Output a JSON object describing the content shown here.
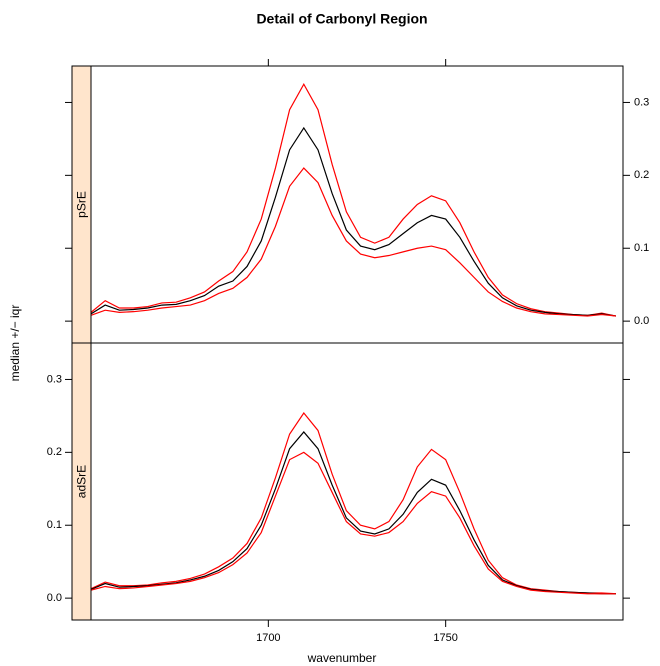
{
  "chart_data": {
    "type": "line",
    "title": "Detail of Carbonyl Region",
    "xlabel": "wavenumber",
    "ylabel": "median +/− iqr",
    "x": [
      1650,
      1654,
      1658,
      1662,
      1666,
      1670,
      1674,
      1678,
      1682,
      1686,
      1690,
      1694,
      1698,
      1702,
      1706,
      1710,
      1714,
      1718,
      1722,
      1726,
      1730,
      1734,
      1738,
      1742,
      1746,
      1750,
      1754,
      1758,
      1762,
      1766,
      1770,
      1774,
      1778,
      1782,
      1786,
      1790,
      1794,
      1798
    ],
    "xlim": [
      1650,
      1800
    ],
    "xticks": [
      1700,
      1750
    ],
    "ylim": [
      -0.03,
      0.35
    ],
    "yticks": [
      {
        "value": 0,
        "label": "0.0"
      },
      0.1,
      0.2,
      0.3
    ],
    "strip_color": "#ffe5cc",
    "panels": [
      {
        "label": "pSrE",
        "series": [
          {
            "color": "#ff0000",
            "values": [
              0.012,
              0.028,
              0.018,
              0.018,
              0.02,
              0.025,
              0.026,
              0.032,
              0.04,
              0.055,
              0.068,
              0.095,
              0.14,
              0.21,
              0.29,
              0.325,
              0.29,
              0.215,
              0.15,
              0.115,
              0.107,
              0.115,
              0.14,
              0.16,
              0.172,
              0.165,
              0.135,
              0.095,
              0.06,
              0.036,
              0.024,
              0.017,
              0.013,
              0.011,
              0.009,
              0.008,
              0.011,
              0.007
            ]
          },
          {
            "color": "#000000",
            "values": [
              0.01,
              0.022,
              0.015,
              0.016,
              0.018,
              0.022,
              0.023,
              0.028,
              0.035,
              0.048,
              0.055,
              0.075,
              0.11,
              0.17,
              0.235,
              0.265,
              0.235,
              0.175,
              0.125,
              0.103,
              0.098,
              0.105,
              0.12,
              0.135,
              0.145,
              0.14,
              0.115,
              0.082,
              0.052,
              0.032,
              0.021,
              0.015,
              0.012,
              0.01,
              0.009,
              0.008,
              0.01,
              0.007
            ]
          },
          {
            "color": "#ff0000",
            "values": [
              0.008,
              0.015,
              0.012,
              0.013,
              0.015,
              0.018,
              0.02,
              0.022,
              0.028,
              0.038,
              0.045,
              0.06,
              0.085,
              0.13,
              0.185,
              0.21,
              0.19,
              0.145,
              0.11,
              0.092,
              0.087,
              0.09,
              0.095,
              0.1,
              0.103,
              0.098,
              0.08,
              0.06,
              0.04,
              0.027,
              0.018,
              0.013,
              0.01,
              0.009,
              0.008,
              0.007,
              0.009,
              0.007
            ]
          }
        ]
      },
      {
        "label": "adSrE",
        "series": [
          {
            "color": "#ff0000",
            "values": [
              0.013,
              0.022,
              0.017,
              0.017,
              0.018,
              0.021,
              0.023,
              0.027,
              0.033,
              0.043,
              0.055,
              0.075,
              0.11,
              0.165,
              0.225,
              0.254,
              0.23,
              0.17,
              0.12,
              0.1,
              0.095,
              0.105,
              0.135,
              0.18,
              0.204,
              0.19,
              0.145,
              0.095,
              0.052,
              0.028,
              0.018,
              0.013,
              0.011,
              0.009,
              0.008,
              0.007,
              0.007,
              0.006
            ]
          },
          {
            "color": "#000000",
            "values": [
              0.012,
              0.02,
              0.015,
              0.016,
              0.017,
              0.019,
              0.021,
              0.025,
              0.03,
              0.038,
              0.05,
              0.068,
              0.1,
              0.15,
              0.205,
              0.228,
              0.205,
              0.155,
              0.11,
              0.092,
              0.088,
              0.095,
              0.115,
              0.145,
              0.163,
              0.155,
              0.12,
              0.08,
              0.045,
              0.025,
              0.017,
              0.012,
              0.01,
              0.009,
              0.008,
              0.007,
              0.006,
              0.006
            ]
          },
          {
            "color": "#ff0000",
            "values": [
              0.011,
              0.016,
              0.013,
              0.014,
              0.016,
              0.018,
              0.02,
              0.023,
              0.028,
              0.035,
              0.046,
              0.062,
              0.09,
              0.14,
              0.19,
              0.2,
              0.185,
              0.145,
              0.105,
              0.088,
              0.085,
              0.09,
              0.105,
              0.13,
              0.146,
              0.14,
              0.11,
              0.072,
              0.04,
              0.023,
              0.016,
              0.011,
              0.009,
              0.008,
              0.007,
              0.006,
              0.006,
              0.006
            ]
          }
        ]
      }
    ]
  }
}
